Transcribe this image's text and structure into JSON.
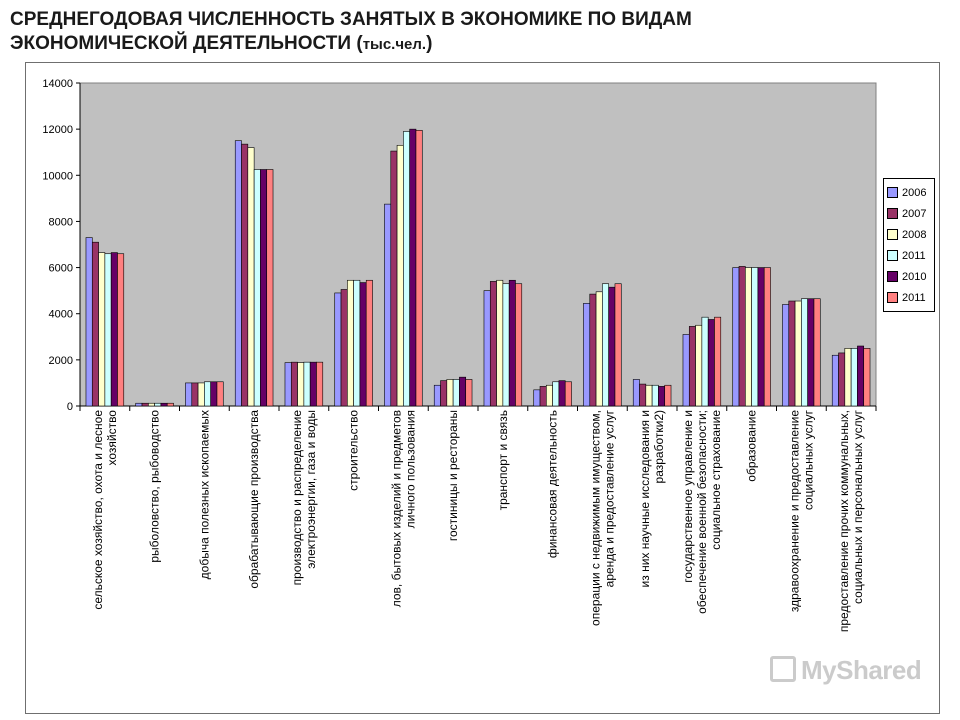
{
  "title": {
    "line1": "СРЕДНЕГОДОВАЯ ЧИСЛЕННОСТЬ ЗАНЯТЫХ В ЭКОНОМИКЕ ПО ВИДАМ",
    "line2": "ЭКОНОМИЧЕСКОЙ ДЕЯТЕЛЬНОСТИ (",
    "unit": "тыс.чел.",
    "close": ")"
  },
  "watermark": "MyShared",
  "chart_data": {
    "type": "bar",
    "ylim": [
      0,
      14000
    ],
    "yticks": [
      0,
      2000,
      4000,
      6000,
      8000,
      10000,
      12000,
      14000
    ],
    "grid": false,
    "legend_position": "right",
    "categories": [
      [
        "сельское хозяйство, охота   и лесное",
        "хозяйство"
      ],
      [
        "рыболовство, рыбоводство"
      ],
      [
        "добыча полезных  ископаемых"
      ],
      [
        "обрабатывающие    производства"
      ],
      [
        "производство и    распределение",
        "электроэнергии, газа и    воды"
      ],
      [
        "строительство"
      ],
      [
        "лов, бытовых изделий и предметов",
        "личного пользования"
      ],
      [
        "гостиницы и рестораны"
      ],
      [
        "транспорт и связь"
      ],
      [
        "финансовая деятельность"
      ],
      [
        "операции с недвижимым имуществом,",
        "аренда  и предоставление услуг"
      ],
      [
        "из них научные исследования и",
        "разработки2)"
      ],
      [
        "государственное управление и",
        "обеспечение военной безопасности;",
        "социальное страхование"
      ],
      [
        "образование"
      ],
      [
        "здравоохранение и предоставление",
        "социальных услуг"
      ],
      [
        "предоставление прочих коммунальных,",
        "социальных и персональных услуг"
      ]
    ],
    "series": [
      {
        "name": "2006",
        "color": "#9999ff",
        "values": [
          7300,
          120,
          1000,
          11500,
          1880,
          4900,
          8750,
          900,
          5000,
          700,
          4450,
          1150,
          3100,
          6000,
          4400,
          2200
        ]
      },
      {
        "name": "2007",
        "color": "#993366",
        "values": [
          7100,
          120,
          1000,
          11350,
          1900,
          5050,
          11050,
          1100,
          5400,
          850,
          4850,
          950,
          3450,
          6050,
          4550,
          2300
        ]
      },
      {
        "name": "2008",
        "color": "#ffffcc",
        "values": [
          6650,
          120,
          1000,
          11200,
          1880,
          5450,
          11300,
          1150,
          5450,
          900,
          4950,
          900,
          3500,
          6000,
          4550,
          2500
        ]
      },
      {
        "name": "2011",
        "color": "#ccffff",
        "values": [
          6600,
          120,
          1050,
          10250,
          1900,
          5450,
          11900,
          1150,
          5300,
          1050,
          5300,
          900,
          3850,
          6000,
          4650,
          2500
        ]
      },
      {
        "name": "2010",
        "color": "#660066",
        "values": [
          6650,
          120,
          1050,
          10250,
          1900,
          5350,
          12000,
          1250,
          5450,
          1100,
          5150,
          850,
          3750,
          6000,
          4650,
          2600
        ]
      },
      {
        "name": "2011",
        "color": "#ff8080",
        "values": [
          6600,
          120,
          1050,
          10250,
          1900,
          5450,
          11950,
          1150,
          5300,
          1050,
          5300,
          900,
          3850,
          6000,
          4650,
          2500
        ]
      }
    ]
  }
}
